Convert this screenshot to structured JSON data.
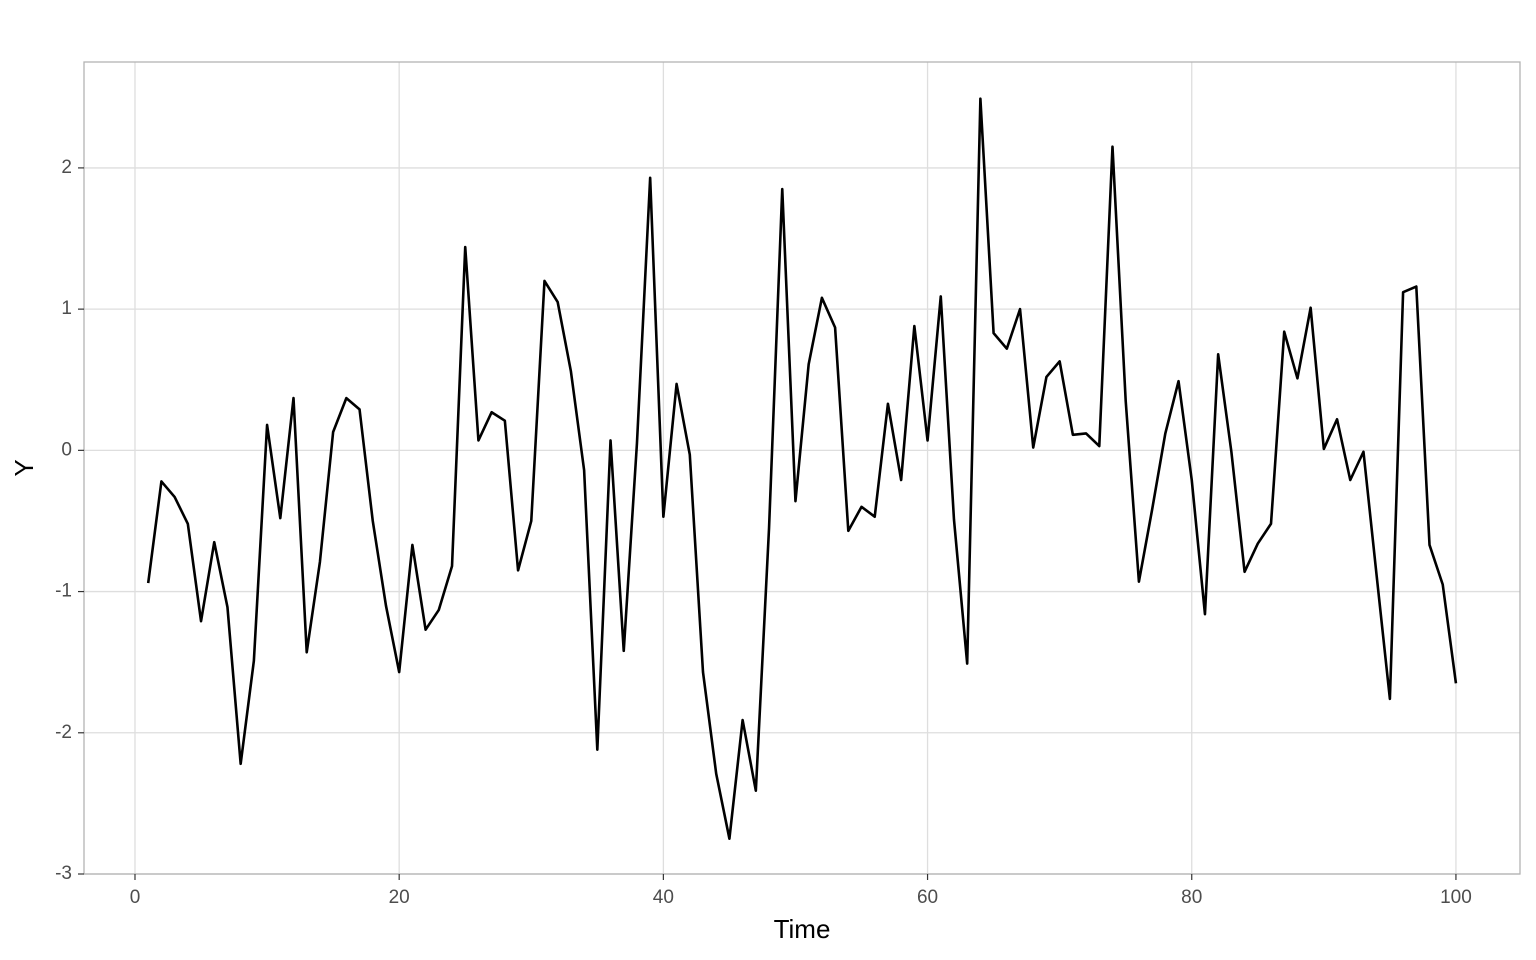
{
  "chart_data": {
    "type": "line",
    "x_label": "Time",
    "y_label": "Y",
    "color": "#000000",
    "grid": true,
    "x": [
      1,
      2,
      3,
      4,
      5,
      6,
      7,
      8,
      9,
      10,
      11,
      12,
      13,
      14,
      15,
      16,
      17,
      18,
      19,
      20,
      21,
      22,
      23,
      24,
      25,
      26,
      27,
      28,
      29,
      30,
      31,
      32,
      33,
      34,
      35,
      36,
      37,
      38,
      39,
      40,
      41,
      42,
      43,
      44,
      45,
      46,
      47,
      48,
      49,
      50,
      51,
      52,
      53,
      54,
      55,
      56,
      57,
      58,
      59,
      60,
      61,
      62,
      63,
      64,
      65,
      66,
      67,
      68,
      69,
      70,
      71,
      72,
      73,
      74,
      75,
      76,
      77,
      78,
      79,
      80,
      81,
      82,
      83,
      84,
      85,
      86,
      87,
      88,
      89,
      90,
      91,
      92,
      93,
      94,
      95,
      96,
      97,
      98,
      99,
      100
    ],
    "values": [
      -0.94,
      -0.22,
      -0.33,
      -0.52,
      -1.21,
      -0.65,
      -1.11,
      -2.22,
      -1.49,
      0.18,
      -0.48,
      0.37,
      -1.43,
      -0.79,
      0.13,
      0.37,
      0.29,
      -0.5,
      -1.1,
      -1.57,
      -0.67,
      -1.27,
      -1.13,
      -0.82,
      1.44,
      0.07,
      0.27,
      0.21,
      -0.85,
      -0.5,
      1.2,
      1.05,
      0.56,
      -0.14,
      -2.12,
      0.07,
      -1.42,
      0.05,
      1.93,
      -0.47,
      0.47,
      -0.03,
      -1.57,
      -2.29,
      -2.75,
      -1.91,
      -2.41,
      -0.55,
      1.85,
      -0.36,
      0.61,
      1.08,
      0.87,
      -0.57,
      -0.4,
      -0.47,
      0.33,
      -0.21,
      0.88,
      0.07,
      1.09,
      -0.49,
      -1.51,
      2.49,
      0.83,
      0.72,
      1.0,
      0.02,
      0.52,
      0.63,
      0.11,
      0.12,
      0.03,
      2.15,
      0.35,
      -0.93,
      -0.42,
      0.12,
      0.49,
      -0.21,
      -1.16,
      0.68,
      -0.01,
      -0.86,
      -0.66,
      -0.52,
      0.84,
      0.51,
      1.01,
      0.01,
      0.22,
      -0.21,
      -0.01,
      -0.89,
      -1.76,
      1.12,
      1.16,
      -0.67,
      -0.95,
      -1.65
    ],
    "xlim": [
      -3.86,
      104.85
    ],
    "ylim": [
      -3.0,
      2.75
    ],
    "xticks": [
      0,
      20,
      40,
      60,
      80,
      100
    ],
    "yticks": [
      -3,
      -2,
      -1,
      0,
      1,
      2
    ]
  }
}
